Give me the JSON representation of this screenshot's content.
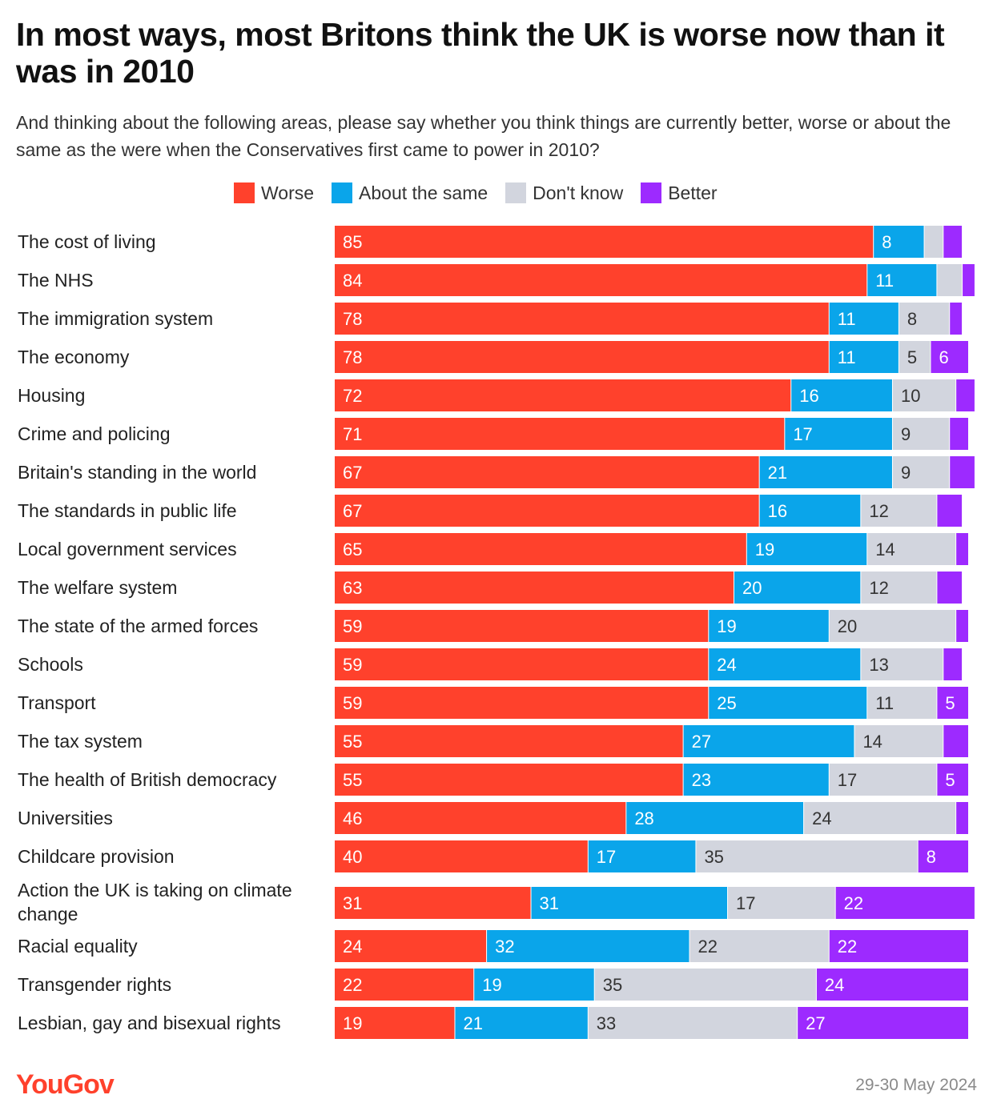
{
  "title": "In most ways, most Britons think the UK is worse now than it was in 2010",
  "subtitle": "And thinking about the following areas, please say whether you think things are currently better, worse or about the same as the were when the Conservatives first came to power in 2010?",
  "brand": "YouGov",
  "date": "29-30 May 2024",
  "colors": {
    "worse": "#ff412c",
    "same": "#0aa5ea",
    "dontknow": "#d2d5de",
    "better": "#9d2aff"
  },
  "chart_data": {
    "type": "bar",
    "orientation": "horizontal",
    "stacked": true,
    "legend_position": "top",
    "categories": [
      "The cost of living",
      "The NHS",
      "The immigration system",
      "The economy",
      "Housing",
      "Crime and policing",
      "Britain's standing in the world",
      "The standards in public life",
      "Local government services",
      "The welfare system",
      "The state of the armed forces",
      "Schools",
      "Transport",
      "The tax system",
      "The health of British democracy",
      "Universities",
      "Childcare provision",
      "Action the UK is taking on climate change",
      "Racial equality",
      "Transgender rights",
      "Lesbian, gay and bisexual rights"
    ],
    "series": [
      {
        "name": "Worse",
        "key": "worse",
        "values": [
          85,
          84,
          78,
          78,
          72,
          71,
          67,
          67,
          65,
          63,
          59,
          59,
          59,
          55,
          55,
          46,
          40,
          31,
          24,
          22,
          19
        ],
        "labels": [
          "85",
          "84",
          "78",
          "78",
          "72",
          "71",
          "67",
          "67",
          "65",
          "63",
          "59",
          "59",
          "59",
          "55",
          "55",
          "46",
          "40",
          "31",
          "24",
          "22",
          "19"
        ]
      },
      {
        "name": "About the same",
        "key": "same",
        "values": [
          8,
          11,
          11,
          11,
          16,
          17,
          21,
          16,
          19,
          20,
          19,
          24,
          25,
          27,
          23,
          28,
          17,
          31,
          32,
          19,
          21
        ],
        "labels": [
          "8",
          "11",
          "11",
          "11",
          "16",
          "17",
          "21",
          "16",
          "19",
          "20",
          "19",
          "24",
          "25",
          "27",
          "23",
          "28",
          "17",
          "31",
          "32",
          "19",
          "21"
        ]
      },
      {
        "name": "Don't know",
        "key": "dontknow",
        "values": [
          3,
          4,
          8,
          5,
          10,
          9,
          9,
          12,
          14,
          12,
          20,
          13,
          11,
          14,
          17,
          24,
          35,
          17,
          22,
          35,
          33
        ],
        "labels": [
          "",
          "",
          "8",
          "5",
          "10",
          "9",
          "9",
          "12",
          "14",
          "12",
          "20",
          "13",
          "11",
          "14",
          "17",
          "24",
          "35",
          "17",
          "22",
          "35",
          "33"
        ]
      },
      {
        "name": "Better",
        "key": "better",
        "values": [
          3,
          2,
          2,
          6,
          3,
          3,
          4,
          4,
          2,
          4,
          2,
          3,
          5,
          4,
          5,
          2,
          8,
          22,
          22,
          24,
          27
        ],
        "labels": [
          "",
          "",
          "",
          "6",
          "",
          "",
          "",
          "",
          "",
          "",
          "",
          "",
          "5",
          "",
          "5",
          "",
          "8",
          "22",
          "22",
          "24",
          "27"
        ]
      }
    ],
    "xlim": [
      0,
      100
    ],
    "grid": false
  }
}
